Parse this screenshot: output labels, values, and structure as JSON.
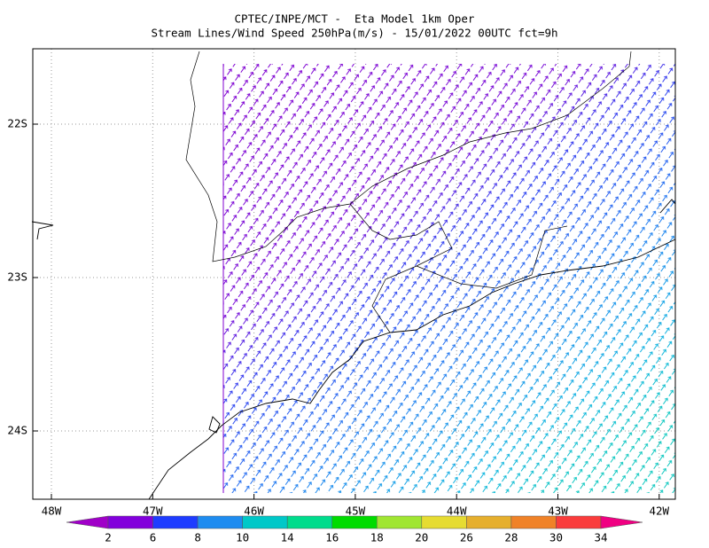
{
  "header": {
    "line1": "CPTEC/INPE/MCT -  Eta Model 1km Oper",
    "line2": "Stream Lines/Wind Speed 250hPa(m/s) - 15/01/2022 00UTC fct=9h"
  },
  "map": {
    "lat_labels": [
      "22S",
      "23S",
      "24S"
    ],
    "lon_labels": [
      "48W",
      "47W",
      "46W",
      "45W",
      "44W",
      "43W",
      "42W"
    ]
  },
  "colorbar": {
    "labels": [
      2,
      6,
      8,
      10,
      14,
      16,
      18,
      20,
      26,
      28,
      30,
      34
    ],
    "colors": [
      "#a000c8",
      "#8200dc",
      "#1e3cff",
      "#1e8cf0",
      "#00c8c8",
      "#00dc8c",
      "#00dc00",
      "#a0e632",
      "#e6dc32",
      "#e6af2d",
      "#f08228",
      "#fa3c3c",
      "#f00082"
    ]
  }
}
